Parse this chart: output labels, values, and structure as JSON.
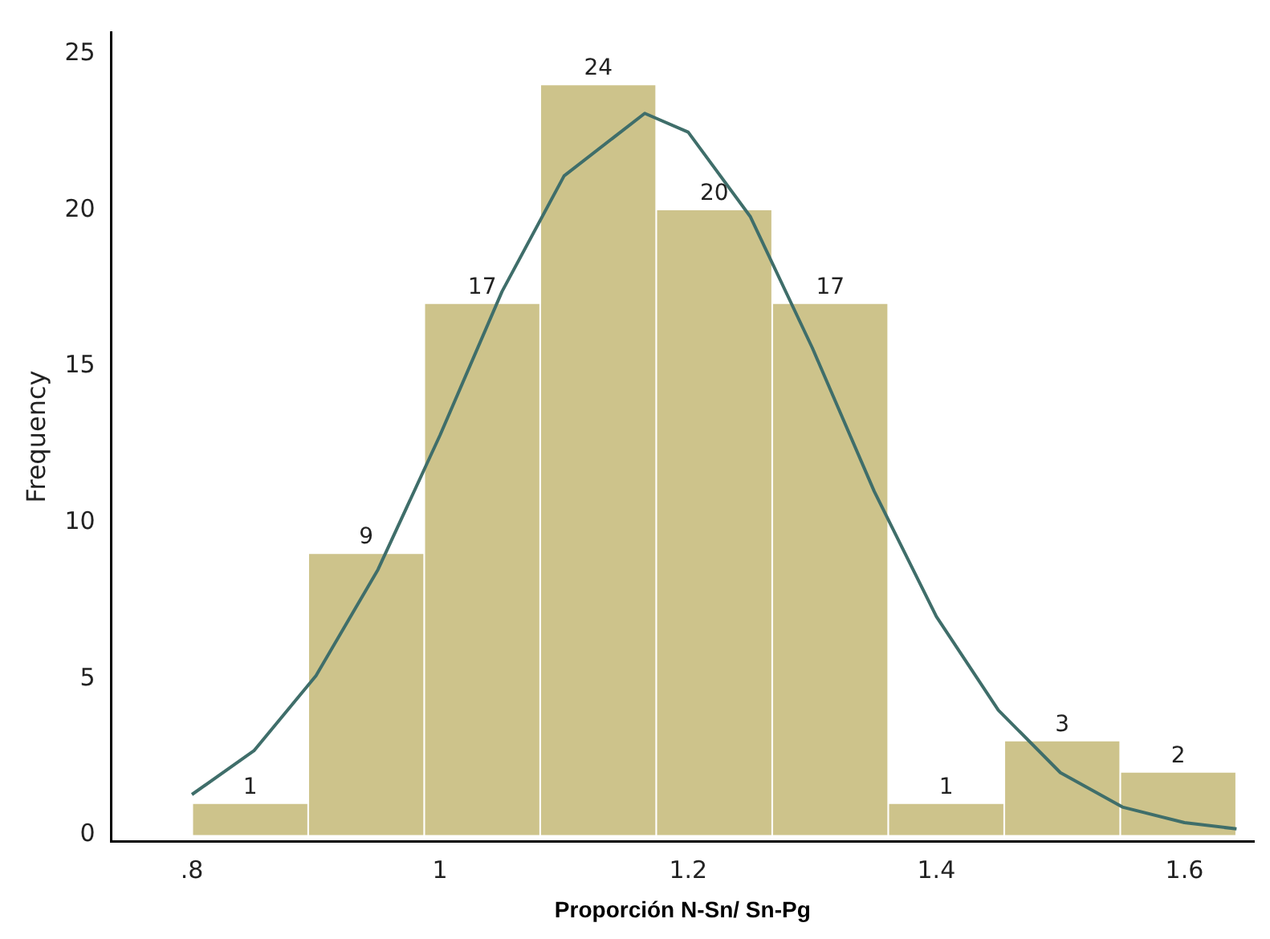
{
  "chart_data": {
    "type": "histogram",
    "xlabel": "Proporción N-Sn/ Sn-Pg",
    "ylabel": "Frequency",
    "bins": [
      0.8,
      0.894,
      0.987,
      1.081,
      1.174,
      1.268,
      1.361,
      1.455,
      1.548,
      1.642
    ],
    "values": [
      1,
      9,
      17,
      24,
      20,
      17,
      1,
      3,
      2
    ],
    "color": "#cdc38b",
    "value_labels": [
      "1",
      "9",
      "17",
      "24",
      "20",
      "17",
      "1",
      "3",
      "2"
    ],
    "series": [
      {
        "type": "line",
        "color": "#3f6e6a",
        "marker": "none",
        "x": [
          0.8,
          0.85,
          0.9,
          0.95,
          1.0,
          1.05,
          1.1,
          1.165,
          1.2,
          1.25,
          1.3,
          1.35,
          1.4,
          1.45,
          1.5,
          1.55,
          1.6,
          1.642
        ],
        "values": [
          1.3,
          2.7,
          5.1,
          8.5,
          12.8,
          17.4,
          21.1,
          23.1,
          22.5,
          19.8,
          15.6,
          11.0,
          7.0,
          4.0,
          2.0,
          0.9,
          0.4,
          0.2
        ]
      }
    ],
    "xlim": [
      0.735,
      1.656
    ],
    "xticks": [
      {
        "value": 0.8,
        "label": ".8"
      },
      1,
      1.2,
      1.4,
      1.6
    ],
    "ylim": [
      -0.2,
      25.7
    ],
    "yticks": [
      0,
      5,
      10,
      15,
      20,
      25
    ],
    "grid": false,
    "legend": false
  }
}
